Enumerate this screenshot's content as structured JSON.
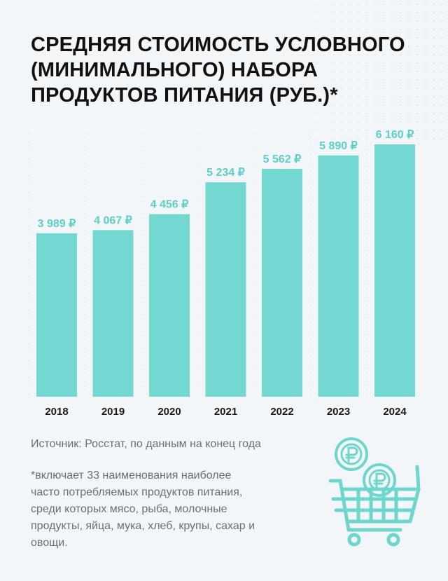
{
  "title": {
    "lines": [
      "СРЕДНЯЯ СТОИМОСТЬ УСЛОВНОГО",
      "(МИНИМАЛЬНОГО) НАБОРА",
      "ПРОДУКТОВ ПИТАНИЯ (РУБ.)*"
    ]
  },
  "source": "Источник: Росстат, по данным на конец года",
  "footnote": {
    "lines": [
      "*включает 33 наименования наиболее",
      "часто потребляемых продуктов питания,",
      "среди которых мясо, рыба, молочные",
      "продукты, яйца, мука, хлеб, крупы, сахар и",
      "овощи."
    ]
  },
  "chart_data": {
    "type": "bar",
    "title": "СРЕДНЯЯ СТОИМОСТЬ УСЛОВНОГО (МИНИМАЛЬНОГО) НАБОРА ПРОДУКТОВ ПИТАНИЯ (РУБ.)*",
    "categories": [
      "2018",
      "2019",
      "2020",
      "2021",
      "2022",
      "2023",
      "2024"
    ],
    "values": [
      3989,
      4067,
      4456,
      5234,
      5562,
      5890,
      6160
    ],
    "value_labels": [
      "3 989 ₽",
      "4 067 ₽",
      "4 456 ₽",
      "5 234 ₽",
      "5 562 ₽",
      "5 890 ₽",
      "6 160 ₽"
    ],
    "xlabel": "",
    "ylabel": "",
    "ylim": [
      0,
      6160
    ],
    "grid": false,
    "legend": "none"
  },
  "colors": {
    "bar": "#73d8d0",
    "value_label": "#5ccfc6",
    "tick_label": "#1a1a1a",
    "text_muted": "#6b6f72",
    "background": "#f3f6f8"
  },
  "icons": [
    "shopping-cart-icon",
    "ruble-coin-icon"
  ]
}
